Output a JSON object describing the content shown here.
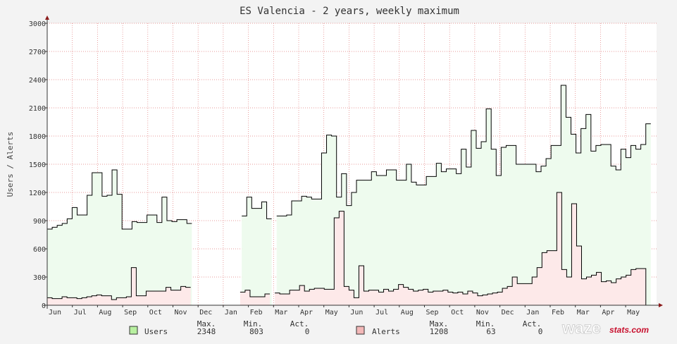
{
  "chart_data": {
    "type": "line",
    "title": "ES Valencia - 2 years, weekly maximum",
    "ylabel": "Users / Alerts",
    "ylim": [
      0,
      3000
    ],
    "yticks": [
      0,
      300,
      600,
      900,
      1200,
      1500,
      1800,
      2100,
      2400,
      2700,
      3000
    ],
    "xticks": [
      "Jun",
      "Jul",
      "Aug",
      "Sep",
      "Oct",
      "Nov",
      "Dec",
      "Jan",
      "Feb",
      "Mar",
      "Apr",
      "May",
      "Jun",
      "Jul",
      "Aug",
      "Sep",
      "Oct",
      "Nov",
      "Dec",
      "Jan",
      "Feb",
      "Mar",
      "Apr",
      "May"
    ],
    "grid": true,
    "weeks_total": 104,
    "series": [
      {
        "name": "Users",
        "line_color": "#000000",
        "fill_color": "#eefbee",
        "swatch_color": "#b8f0a0",
        "values": [
          810,
          830,
          850,
          870,
          920,
          1040,
          960,
          960,
          1170,
          1410,
          1410,
          1160,
          1170,
          1440,
          1180,
          810,
          810,
          890,
          880,
          880,
          960,
          960,
          880,
          1150,
          900,
          890,
          910,
          910,
          870,
          null,
          null,
          null,
          null,
          null,
          null,
          null,
          null,
          null,
          null,
          950,
          1150,
          1030,
          1030,
          1100,
          920,
          null,
          950,
          950,
          960,
          1110,
          1110,
          1160,
          1150,
          1130,
          1130,
          1620,
          1810,
          1800,
          1150,
          1400,
          1060,
          1200,
          1330,
          1330,
          1330,
          1420,
          1380,
          1380,
          1440,
          1440,
          1330,
          1330,
          1500,
          1310,
          1280,
          1280,
          1370,
          1370,
          1510,
          1420,
          1450,
          1450,
          1400,
          1660,
          1470,
          1860,
          1670,
          1740,
          2090,
          1660,
          1380,
          1680,
          1700,
          1700,
          1500,
          1500,
          1500,
          1500,
          1420,
          1480,
          1560,
          1700,
          1700,
          2340,
          2000,
          1820,
          1620,
          1880,
          2030,
          1640,
          1700,
          1710,
          1710,
          1480,
          1440,
          1660,
          1570,
          1700,
          1660,
          1710,
          1930
        ],
        "max": "2348",
        "min": "803",
        "act": "0"
      },
      {
        "name": "Alerts",
        "line_color": "#000000",
        "fill_color": "#fde9e9",
        "swatch_color": "#f3b8b8",
        "values": [
          80,
          70,
          70,
          90,
          80,
          80,
          70,
          80,
          90,
          100,
          110,
          100,
          100,
          60,
          80,
          80,
          90,
          400,
          100,
          100,
          150,
          150,
          150,
          150,
          190,
          160,
          160,
          200,
          190,
          null,
          null,
          null,
          null,
          null,
          null,
          null,
          null,
          null,
          null,
          140,
          160,
          90,
          90,
          90,
          120,
          null,
          130,
          120,
          120,
          160,
          160,
          210,
          150,
          170,
          180,
          180,
          170,
          170,
          930,
          1000,
          200,
          160,
          80,
          420,
          150,
          160,
          160,
          140,
          170,
          150,
          170,
          220,
          190,
          170,
          150,
          160,
          170,
          140,
          150,
          150,
          160,
          140,
          130,
          140,
          120,
          150,
          130,
          100,
          110,
          120,
          130,
          140,
          180,
          200,
          300,
          230,
          230,
          230,
          300,
          400,
          560,
          580,
          580,
          1200,
          380,
          300,
          1080,
          630,
          280,
          300,
          320,
          350,
          250,
          260,
          240,
          280,
          300,
          320,
          380,
          390,
          390,
          0
        ],
        "max": "1208",
        "min": "63",
        "act": "0"
      }
    ]
  },
  "legend": {
    "col_max": "Max.",
    "col_min": "Min.",
    "col_act": "Act."
  },
  "logo": {
    "part1": "waze",
    "part2": "stats.com"
  }
}
